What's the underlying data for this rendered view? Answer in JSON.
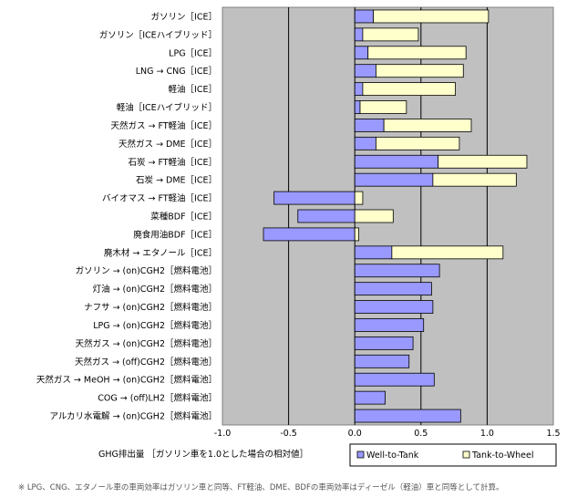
{
  "chart_data": {
    "type": "bar",
    "orientation": "horizontal",
    "stacked": true,
    "categories": [
      "ガソリン［ICE］",
      "ガソリン［ICEハイブリッド］",
      "LPG［ICE］",
      "LNG → CNG［ICE］",
      "軽油［ICE］",
      "軽油［ICEハイブリッド］",
      "天然ガス → FT軽油［ICE］",
      "天然ガス → DME［ICE］",
      "石炭 → FT軽油［ICE］",
      "石炭 → DME［ICE］",
      "バイオマス → FT軽油［ICE］",
      "菜種BDF［ICE］",
      "廃食用油BDF［ICE］",
      "廃木材 → エタノール［ICE］",
      "ガソリン → (on)CGH2［燃料電池］",
      "灯油 → (on)CGH2［燃料電池］",
      "ナフサ → (on)CGH2［燃料電池］",
      "LPG → (on)CGH2［燃料電池］",
      "天然ガス → (on)CGH2［燃料電池］",
      "天然ガス → (off)CGH2［燃料電池］",
      "天然ガス → MeOH → (on)CGH2［燃料電池］",
      "COG → (off)LH2［燃料電池］",
      "アルカリ水電解 → (on)CGH2［燃料電池］"
    ],
    "series": [
      {
        "name": "Well-to-Tank",
        "color": "#9999ff",
        "values": [
          0.14,
          0.06,
          0.1,
          0.16,
          0.06,
          0.04,
          0.22,
          0.16,
          0.63,
          0.59,
          -0.61,
          -0.43,
          -0.69,
          0.28,
          0.64,
          0.58,
          0.59,
          0.52,
          0.44,
          0.41,
          0.6,
          0.23,
          0.8
        ]
      },
      {
        "name": "Tank-to-Wheel",
        "color": "#ffffcc",
        "values": [
          0.87,
          0.42,
          0.74,
          0.66,
          0.7,
          0.35,
          0.66,
          0.63,
          0.67,
          0.63,
          0.06,
          0.29,
          0.03,
          0.84,
          0,
          0,
          0,
          0,
          0,
          0,
          0,
          0,
          0
        ]
      }
    ],
    "xlim": [
      -1.0,
      1.5
    ],
    "xticks": [
      -1.0,
      -0.5,
      0.0,
      0.5,
      1.0,
      1.5
    ],
    "tick_labels": [
      "-1.0",
      "-0.5",
      "0.0",
      "0.5",
      "1.0",
      "1.5"
    ],
    "xlabel": "GHG排出量 ［ガソリン車を1.0とした場合の相対値］",
    "legend_position": "bottom-right",
    "grid": "vertical",
    "footnote": "※ LPG、CNG、エタノール車の車両効率はガソリン車と同等、FT軽油、DME、BDFの車両効率はディーゼル（軽油）車と同等として計算。"
  }
}
